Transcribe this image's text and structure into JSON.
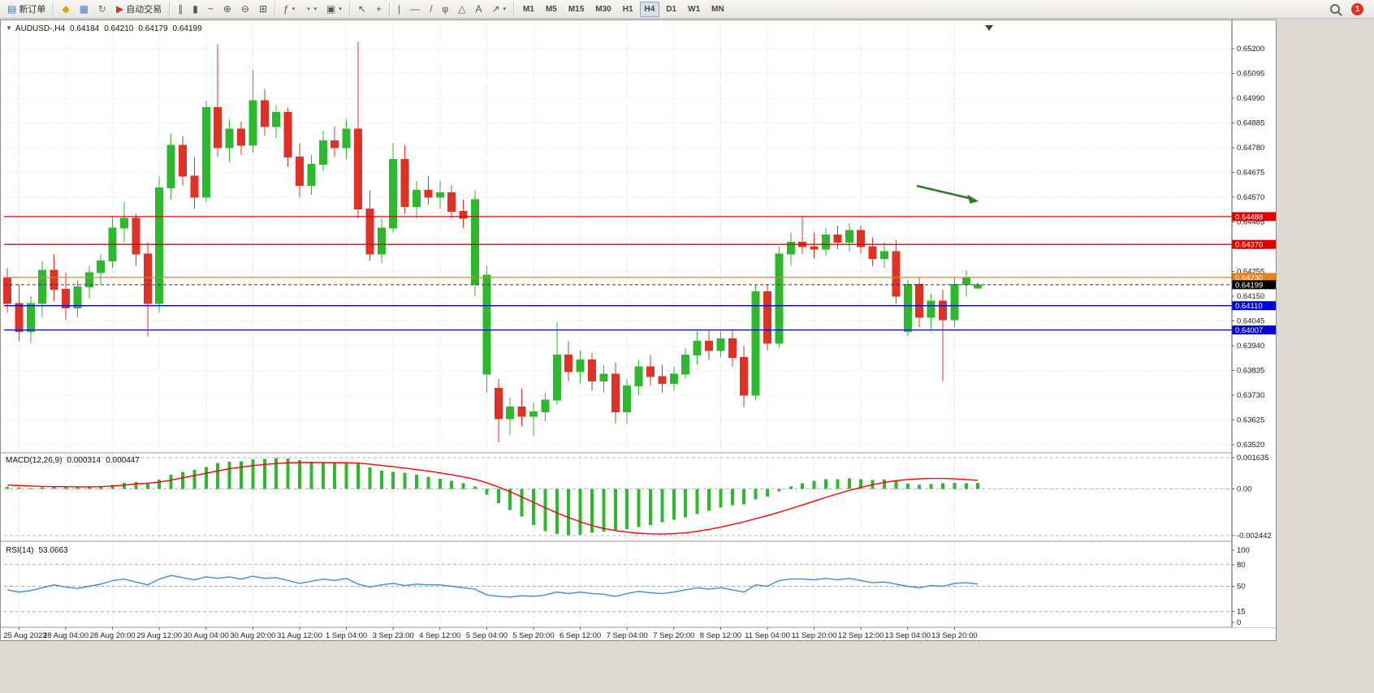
{
  "toolbar": {
    "new_order": "新订单",
    "autotrade": "自动交易",
    "timeframes": [
      "M1",
      "M5",
      "M15",
      "M30",
      "H1",
      "H4",
      "D1",
      "W1",
      "MN"
    ],
    "active_timeframe": "H4",
    "badge_count": "1",
    "icon_groups": [
      {
        "items": [
          {
            "name": "new-order-button",
            "glyph": "▤",
            "glyph_color": "#3a78c2",
            "label_key": "new_order"
          }
        ]
      },
      {
        "items": [
          {
            "name": "market-watch-button",
            "glyph": "◆",
            "glyph_color": "#d9a400"
          },
          {
            "name": "charts-button",
            "glyph": "▦",
            "glyph_color": "#4a7ac8"
          },
          {
            "name": "refresh-button",
            "glyph": "↻",
            "glyph_color": "#6a6a6a"
          },
          {
            "name": "autotrade-button",
            "glyph": "▶",
            "glyph_color": "#c23b2e",
            "label_key": "autotrade"
          }
        ]
      },
      {
        "items": [
          {
            "name": "bar-chart-button",
            "glyph": "∥"
          },
          {
            "name": "candlestick-chart-button",
            "glyph": "▮"
          },
          {
            "name": "line-chart-button",
            "glyph": "~"
          },
          {
            "name": "zoom-in-button",
            "glyph": "⊕"
          },
          {
            "name": "zoom-out-button",
            "glyph": "⊖"
          },
          {
            "name": "tile-windows-button",
            "glyph": "⊞"
          }
        ]
      },
      {
        "items": [
          {
            "name": "indicators-button",
            "glyph": "ƒ",
            "dropdown": true
          },
          {
            "name": "periods-button",
            "glyph": "◔",
            "dropdown": true
          },
          {
            "name": "templates-button",
            "glyph": "▣",
            "dropdown": true
          }
        ]
      },
      {
        "items": [
          {
            "name": "cursor-button",
            "glyph": "↖"
          },
          {
            "name": "crosshair-button",
            "glyph": "+"
          }
        ]
      },
      {
        "items": [
          {
            "name": "vertical-line-button",
            "glyph": "|"
          },
          {
            "name": "horizontal-line-button",
            "glyph": "—"
          },
          {
            "name": "trendline-button",
            "glyph": "/"
          },
          {
            "name": "fibonacci-button",
            "glyph": "φ"
          },
          {
            "name": "shapes-button",
            "glyph": "△"
          },
          {
            "name": "text-button",
            "glyph": "A"
          },
          {
            "name": "arrows-button",
            "glyph": "↗",
            "dropdown": true
          }
        ]
      }
    ]
  },
  "chart": {
    "type": "candlestick",
    "context_marker": "▼",
    "symbol_label": "AUDUSD-,H4",
    "ohlc": {
      "open": "0.64184",
      "high": "0.64210",
      "low": "0.64179",
      "close": "0.64199"
    },
    "price_axis": [
      "0.65200",
      "0.65095",
      "0.64990",
      "0.64885",
      "0.64780",
      "0.64675",
      "0.64570",
      "0.64465",
      "0.64360",
      "0.64255",
      "0.64150",
      "0.64045",
      "0.63940",
      "0.63835",
      "0.63730",
      "0.63625",
      "0.63520"
    ],
    "hlines": [
      {
        "value": 0.64488,
        "label": "0.64488",
        "color": "#e00000",
        "style": "solid"
      },
      {
        "value": 0.6437,
        "label": "0.64370",
        "color": "#e00000",
        "style": "solid"
      },
      {
        "value": 0.6423,
        "label": "0.64230",
        "color": "#e8821e",
        "style": "solid"
      },
      {
        "value": 0.6411,
        "label": "0.64110",
        "color": "#0000d8",
        "style": "solid"
      },
      {
        "value": 0.64007,
        "label": "0.64007",
        "color": "#0000d8",
        "style": "solid"
      },
      {
        "value": 0.64199,
        "label": "0.64199",
        "color": "#333333",
        "style": "dashed",
        "tag_bg": "#000000"
      }
    ],
    "colors": {
      "bull": "#2db82d",
      "bear": "#e03224",
      "grid": "#d9d9d9",
      "arrow": "#2f7d21"
    },
    "time_axis": [
      {
        "i": 1,
        "t": "25 Aug 2023"
      },
      {
        "i": 5,
        "t": "28 Aug 04:00"
      },
      {
        "i": 9,
        "t": "28 Aug 20:00"
      },
      {
        "i": 13,
        "t": "29 Aug 12:00"
      },
      {
        "i": 17,
        "t": "30 Aug 04:00"
      },
      {
        "i": 21,
        "t": "30 Aug 20:00"
      },
      {
        "i": 25,
        "t": "31 Aug 12:00"
      },
      {
        "i": 29,
        "t": "1 Sep 04:00"
      },
      {
        "i": 33,
        "t": "3 Sep 23:00"
      },
      {
        "i": 37,
        "t": "4 Sep 12:00"
      },
      {
        "i": 41,
        "t": "5 Sep 04:00"
      },
      {
        "i": 45,
        "t": "5 Sep 20:00"
      },
      {
        "i": 49,
        "t": "6 Sep 12:00"
      },
      {
        "i": 53,
        "t": "7 Sep 04:00"
      },
      {
        "i": 57,
        "t": "7 Sep 20:00"
      },
      {
        "i": 61,
        "t": "8 Sep 12:00"
      },
      {
        "i": 65,
        "t": "11 Sep 04:00"
      },
      {
        "i": 69,
        "t": "11 Sep 20:00"
      },
      {
        "i": 73,
        "t": "12 Sep 12:00"
      },
      {
        "i": 77,
        "t": "13 Sep 04:00"
      },
      {
        "i": 81,
        "t": "13 Sep 20:00"
      }
    ],
    "candles": [
      [
        0.6423,
        0.6427,
        0.6408,
        0.6412
      ],
      [
        0.6412,
        0.642,
        0.6396,
        0.64
      ],
      [
        0.64,
        0.6415,
        0.6395,
        0.6412
      ],
      [
        0.6412,
        0.643,
        0.6406,
        0.6426
      ],
      [
        0.6426,
        0.6433,
        0.6413,
        0.6418
      ],
      [
        0.6418,
        0.6425,
        0.6405,
        0.641
      ],
      [
        0.641,
        0.6422,
        0.6406,
        0.6419
      ],
      [
        0.6419,
        0.6428,
        0.6414,
        0.6425
      ],
      [
        0.6425,
        0.6433,
        0.642,
        0.643
      ],
      [
        0.643,
        0.6449,
        0.6427,
        0.6444
      ],
      [
        0.6444,
        0.6455,
        0.6438,
        0.6448
      ],
      [
        0.6448,
        0.645,
        0.6428,
        0.6433
      ],
      [
        0.6433,
        0.6438,
        0.6398,
        0.6412
      ],
      [
        0.6412,
        0.6466,
        0.6408,
        0.6461
      ],
      [
        0.6461,
        0.6484,
        0.6456,
        0.6479
      ],
      [
        0.6479,
        0.6483,
        0.6462,
        0.6466
      ],
      [
        0.6466,
        0.6474,
        0.6452,
        0.6457
      ],
      [
        0.6457,
        0.6498,
        0.6455,
        0.6495
      ],
      [
        0.6495,
        0.6522,
        0.6474,
        0.6478
      ],
      [
        0.6478,
        0.649,
        0.6472,
        0.6486
      ],
      [
        0.6486,
        0.6489,
        0.6475,
        0.6479
      ],
      [
        0.6479,
        0.6511,
        0.6476,
        0.6498
      ],
      [
        0.6498,
        0.6503,
        0.6483,
        0.6487
      ],
      [
        0.6487,
        0.6496,
        0.6482,
        0.6493
      ],
      [
        0.6493,
        0.6495,
        0.647,
        0.6474
      ],
      [
        0.6474,
        0.648,
        0.6457,
        0.6462
      ],
      [
        0.6462,
        0.6475,
        0.6458,
        0.6471
      ],
      [
        0.6471,
        0.6485,
        0.6468,
        0.6481
      ],
      [
        0.6481,
        0.6487,
        0.6474,
        0.6478
      ],
      [
        0.6478,
        0.649,
        0.6473,
        0.6486
      ],
      [
        0.6486,
        0.6523,
        0.6448,
        0.6452
      ],
      [
        0.6452,
        0.646,
        0.643,
        0.6433
      ],
      [
        0.6433,
        0.6448,
        0.6429,
        0.6444
      ],
      [
        0.6444,
        0.648,
        0.6442,
        0.6473
      ],
      [
        0.6473,
        0.6479,
        0.645,
        0.6453
      ],
      [
        0.6453,
        0.6464,
        0.6448,
        0.646
      ],
      [
        0.646,
        0.6466,
        0.6454,
        0.6457
      ],
      [
        0.6457,
        0.6464,
        0.6452,
        0.6459
      ],
      [
        0.6459,
        0.6462,
        0.6448,
        0.6451
      ],
      [
        0.6451,
        0.6456,
        0.6444,
        0.6448
      ],
      [
        0.642,
        0.646,
        0.6415,
        0.6456
      ],
      [
        0.6382,
        0.6428,
        0.6374,
        0.6424
      ],
      [
        0.6376,
        0.638,
        0.6353,
        0.6363
      ],
      [
        0.6363,
        0.6372,
        0.6356,
        0.6368
      ],
      [
        0.6368,
        0.6376,
        0.636,
        0.6364
      ],
      [
        0.6364,
        0.637,
        0.6356,
        0.6366
      ],
      [
        0.6366,
        0.6374,
        0.6362,
        0.6371
      ],
      [
        0.6371,
        0.6404,
        0.6369,
        0.639
      ],
      [
        0.639,
        0.6396,
        0.6379,
        0.6383
      ],
      [
        0.6383,
        0.6392,
        0.6378,
        0.6388
      ],
      [
        0.6388,
        0.6391,
        0.6375,
        0.6379
      ],
      [
        0.6379,
        0.6386,
        0.6374,
        0.6382
      ],
      [
        0.6382,
        0.6387,
        0.6361,
        0.6366
      ],
      [
        0.6366,
        0.638,
        0.6361,
        0.6377
      ],
      [
        0.6377,
        0.6388,
        0.6373,
        0.6385
      ],
      [
        0.6385,
        0.639,
        0.6377,
        0.6381
      ],
      [
        0.6381,
        0.6386,
        0.6374,
        0.6378
      ],
      [
        0.6378,
        0.6385,
        0.6375,
        0.6382
      ],
      [
        0.6382,
        0.6393,
        0.638,
        0.639
      ],
      [
        0.639,
        0.64,
        0.6386,
        0.6396
      ],
      [
        0.6396,
        0.6401,
        0.6388,
        0.6392
      ],
      [
        0.6392,
        0.64,
        0.6389,
        0.6397
      ],
      [
        0.6397,
        0.6401,
        0.6385,
        0.6389
      ],
      [
        0.6389,
        0.6394,
        0.6368,
        0.6373
      ],
      [
        0.6373,
        0.642,
        0.6371,
        0.6417
      ],
      [
        0.6417,
        0.642,
        0.6392,
        0.6395
      ],
      [
        0.6395,
        0.6436,
        0.6393,
        0.6433
      ],
      [
        0.6433,
        0.6442,
        0.6428,
        0.6438
      ],
      [
        0.6438,
        0.6449,
        0.6433,
        0.6436
      ],
      [
        0.6436,
        0.6442,
        0.6431,
        0.6435
      ],
      [
        0.6435,
        0.6444,
        0.6432,
        0.6441
      ],
      [
        0.6441,
        0.6445,
        0.6435,
        0.6438
      ],
      [
        0.6438,
        0.6446,
        0.6434,
        0.6443
      ],
      [
        0.6443,
        0.6445,
        0.6433,
        0.6436
      ],
      [
        0.6436,
        0.644,
        0.6428,
        0.6431
      ],
      [
        0.6431,
        0.6438,
        0.6427,
        0.6434
      ],
      [
        0.6434,
        0.6439,
        0.6412,
        0.6415
      ],
      [
        0.64,
        0.6422,
        0.6398,
        0.642
      ],
      [
        0.642,
        0.6423,
        0.6402,
        0.6406
      ],
      [
        0.6406,
        0.6416,
        0.64,
        0.6413
      ],
      [
        0.6413,
        0.6418,
        0.6379,
        0.6405
      ],
      [
        0.6405,
        0.6423,
        0.6402,
        0.642
      ],
      [
        0.642,
        0.6426,
        0.6415,
        0.6423
      ],
      [
        0.64184,
        0.6421,
        0.64179,
        0.64199
      ]
    ]
  },
  "macd": {
    "label": "MACD(12,26,9)",
    "value_main": "0.000314",
    "value_signal": "0.000447",
    "scale": [
      "0.001635",
      "0.00",
      "-0.002442"
    ],
    "hist": [
      0.0001,
      8e-05,
      5e-05,
      8e-05,
      0.00012,
      0.0001,
      8e-05,
      0.0001,
      0.00014,
      0.00022,
      0.00032,
      0.00036,
      0.0003,
      0.00048,
      0.00075,
      0.0009,
      0.001,
      0.00115,
      0.00135,
      0.00142,
      0.00145,
      0.00155,
      0.00158,
      0.00162,
      0.0016,
      0.0015,
      0.00142,
      0.0014,
      0.00138,
      0.0014,
      0.00132,
      0.00112,
      0.00096,
      0.0009,
      0.00084,
      0.00074,
      0.00064,
      0.00054,
      0.00042,
      0.0003,
      0.00012,
      -0.0003,
      -0.00075,
      -0.0011,
      -0.00145,
      -0.0019,
      -0.0022,
      -0.00235,
      -0.00242,
      -0.0024,
      -0.0023,
      -0.00222,
      -0.00216,
      -0.0021,
      -0.002,
      -0.00188,
      -0.00175,
      -0.00162,
      -0.00148,
      -0.00132,
      -0.00115,
      -0.00098,
      -0.00085,
      -0.0008,
      -0.00055,
      -0.0004,
      -0.00012,
      0.00012,
      0.0003,
      0.00042,
      0.0005,
      0.00052,
      0.00055,
      0.0005,
      0.00046,
      0.00048,
      0.0004,
      0.00028,
      0.00022,
      0.00025,
      0.0003,
      0.00032,
      0.0003,
      0.000314
    ],
    "signal": [
      0.0002,
      0.00018,
      0.00015,
      0.00013,
      0.00012,
      0.00012,
      0.00011,
      0.00011,
      0.00012,
      0.00015,
      0.0002,
      0.00026,
      0.0003,
      0.00036,
      0.00046,
      0.00058,
      0.0007,
      0.00082,
      0.00095,
      0.00106,
      0.00114,
      0.00122,
      0.00128,
      0.00133,
      0.00136,
      0.00138,
      0.00138,
      0.00138,
      0.00137,
      0.00137,
      0.00135,
      0.0013,
      0.00123,
      0.00116,
      0.00109,
      0.00101,
      0.00093,
      0.00084,
      0.00074,
      0.00063,
      0.0005,
      0.00032,
      0.0001,
      -0.00015,
      -0.00042,
      -0.0007,
      -0.00098,
      -0.00125,
      -0.0015,
      -0.00172,
      -0.00192,
      -0.00207,
      -0.00218,
      -0.00226,
      -0.00232,
      -0.00235,
      -0.00236,
      -0.00234,
      -0.0023,
      -0.00222,
      -0.00212,
      -0.002,
      -0.00186,
      -0.00172,
      -0.00156,
      -0.0014,
      -0.00122,
      -0.00103,
      -0.00084,
      -0.00064,
      -0.00044,
      -0.00026,
      -8e-05,
      8e-05,
      0.00022,
      0.00034,
      0.00043,
      0.00049,
      0.00053,
      0.00055,
      0.00055,
      0.00053,
      0.00049,
      0.000447
    ],
    "colors": {
      "hist": "#2db82d",
      "signal": "#ff0000"
    }
  },
  "rsi": {
    "label": "RSI(14)",
    "value": "53.0663",
    "scale": [
      "100",
      "80",
      "50",
      "15",
      "0"
    ],
    "levels": [
      80,
      50,
      15
    ],
    "values": [
      45,
      42,
      44,
      48,
      52,
      49,
      47,
      50,
      53,
      58,
      60,
      56,
      52,
      60,
      65,
      62,
      59,
      63,
      61,
      63,
      60,
      64,
      61,
      62,
      58,
      54,
      57,
      60,
      58,
      61,
      53,
      49,
      52,
      54,
      51,
      53,
      52,
      52,
      50,
      48,
      46,
      38,
      36,
      35,
      37,
      36,
      38,
      42,
      40,
      42,
      40,
      39,
      36,
      40,
      43,
      41,
      40,
      42,
      45,
      48,
      46,
      48,
      45,
      42,
      52,
      50,
      58,
      60,
      60,
      59,
      61,
      59,
      61,
      58,
      55,
      56,
      53,
      50,
      48,
      51,
      50,
      54,
      55,
      53.07
    ],
    "color": "#3b8de0"
  }
}
